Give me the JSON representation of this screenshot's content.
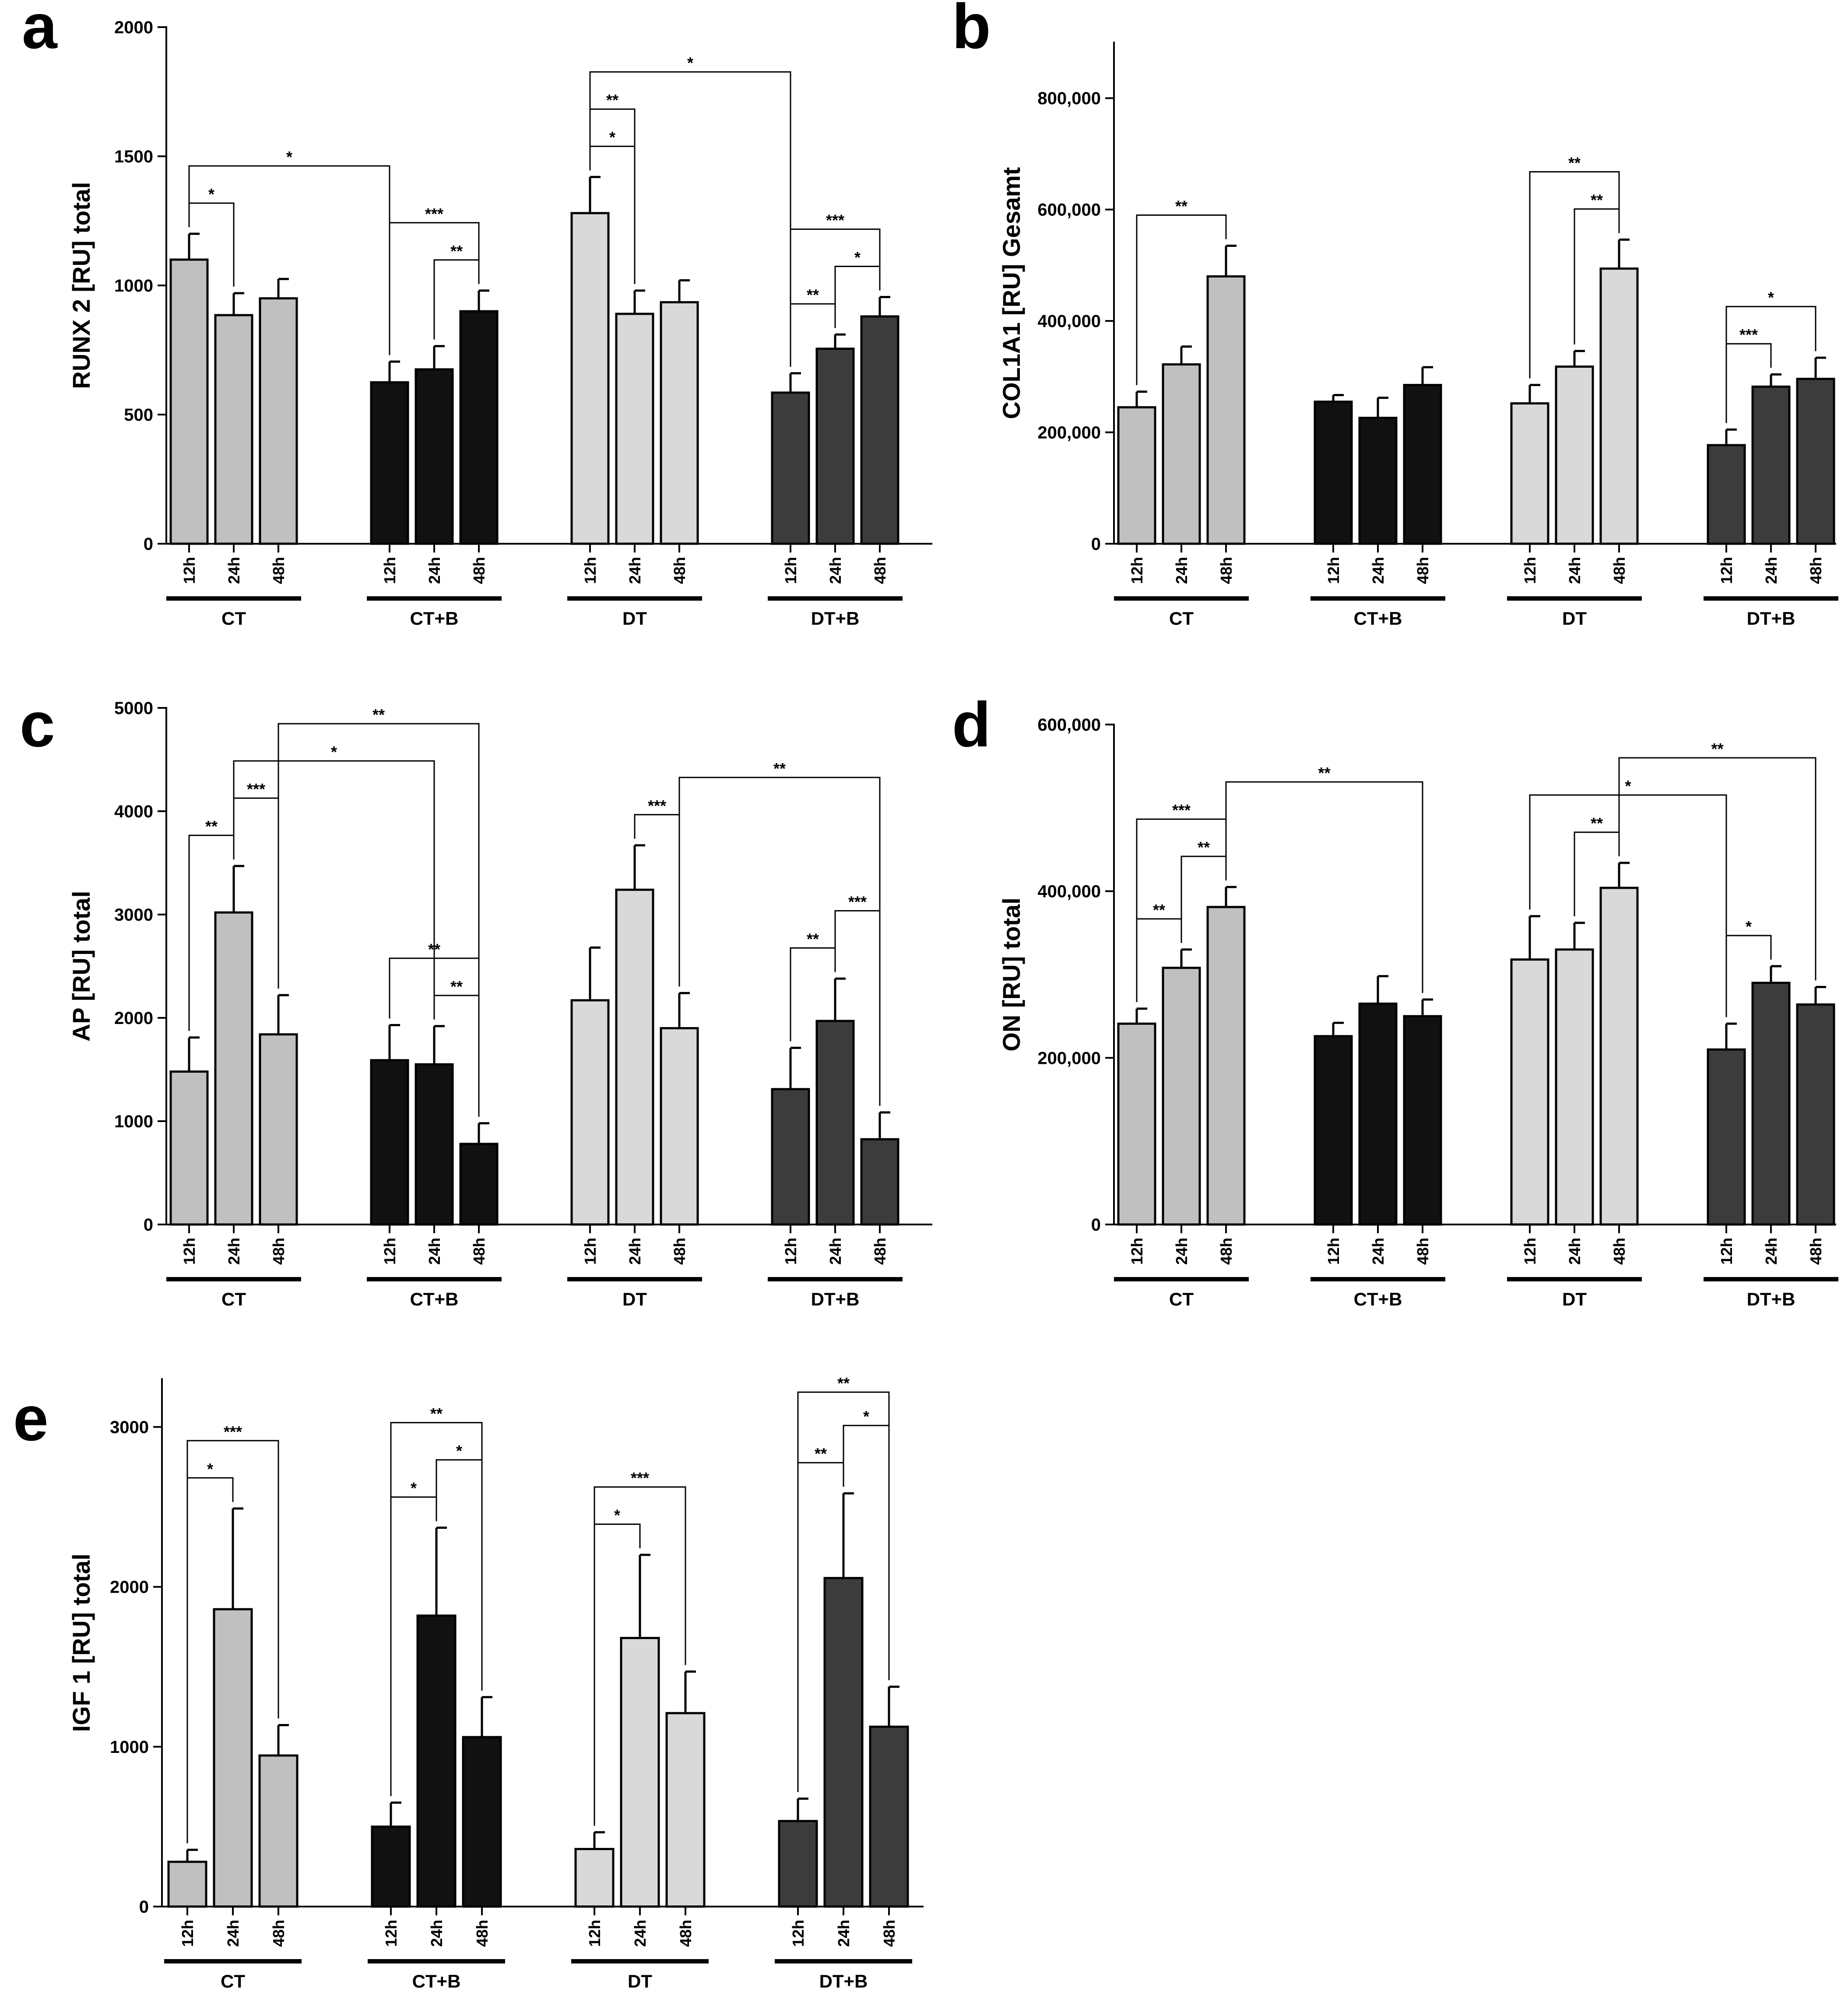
{
  "colors": {
    "CT": "#c0c0c0",
    "CT+B": "#111111",
    "DT": "#d9d9d9",
    "DT+B": "#3c3c3c"
  },
  "chart_data": [
    {
      "panel": "a",
      "type": "bar",
      "ylabel": "RUNX 2 [RU] total",
      "ylim": [
        0,
        2000
      ],
      "yticks": [
        0,
        500,
        1000,
        1500,
        2000
      ],
      "ytick_labels": [
        "0",
        "500",
        "1000",
        "1500",
        "2000"
      ],
      "groups": [
        "CT",
        "CT+B",
        "DT",
        "DT+B"
      ],
      "timepoints": [
        "12h",
        "24h",
        "48h"
      ],
      "values": [
        [
          1100,
          885,
          950
        ],
        [
          625,
          675,
          900
        ],
        [
          1280,
          890,
          935
        ],
        [
          585,
          755,
          880
        ]
      ],
      "errors": [
        [
          100,
          85,
          75
        ],
        [
          80,
          90,
          80
        ],
        [
          140,
          90,
          85
        ],
        [
          75,
          55,
          75
        ]
      ],
      "significance": [
        {
          "from": [
            0,
            0
          ],
          "to": [
            1,
            0
          ],
          "label": "*"
        },
        {
          "from": [
            0,
            0
          ],
          "to": [
            0,
            1
          ],
          "label": "*"
        },
        {
          "from": [
            1,
            0
          ],
          "to": [
            1,
            2
          ],
          "label": "***"
        },
        {
          "from": [
            1,
            1
          ],
          "to": [
            1,
            2
          ],
          "label": "**"
        },
        {
          "from": [
            2,
            0
          ],
          "to": [
            3,
            0
          ],
          "label": "*"
        },
        {
          "from": [
            2,
            0
          ],
          "to": [
            2,
            1
          ],
          "label": "*"
        },
        {
          "from": [
            2,
            0
          ],
          "to": [
            2,
            1
          ],
          "label": "**"
        },
        {
          "from": [
            3,
            0
          ],
          "to": [
            3,
            2
          ],
          "label": "***"
        },
        {
          "from": [
            3,
            0
          ],
          "to": [
            3,
            1
          ],
          "label": "**"
        },
        {
          "from": [
            3,
            1
          ],
          "to": [
            3,
            2
          ],
          "label": "*"
        }
      ]
    },
    {
      "panel": "b",
      "type": "bar",
      "ylabel": "COL1A1 [RU] Gesamt",
      "ylim": [
        0,
        900000
      ],
      "yticks": [
        0,
        200000,
        400000,
        600000,
        800000
      ],
      "ytick_labels": [
        "0",
        "200,000",
        "400,000",
        "600,000",
        "800,000"
      ],
      "groups": [
        "CT",
        "CT+B",
        "DT",
        "DT+B"
      ],
      "timepoints": [
        "12h",
        "24h",
        "48h"
      ],
      "values": [
        [
          245000,
          322000,
          480000
        ],
        [
          255000,
          226000,
          285000
        ],
        [
          252000,
          318000,
          494000
        ],
        [
          177000,
          282000,
          296000
        ]
      ],
      "errors": [
        [
          28000,
          32000,
          55000
        ],
        [
          12000,
          36000,
          32000
        ],
        [
          33000,
          28000,
          52000
        ],
        [
          28000,
          22000,
          38000
        ]
      ],
      "significance": [
        {
          "from": [
            0,
            0
          ],
          "to": [
            0,
            2
          ],
          "label": "**"
        },
        {
          "from": [
            2,
            0
          ],
          "to": [
            2,
            2
          ],
          "label": "**"
        },
        {
          "from": [
            2,
            1
          ],
          "to": [
            2,
            2
          ],
          "label": "**"
        },
        {
          "from": [
            3,
            0
          ],
          "to": [
            3,
            2
          ],
          "label": "*"
        },
        {
          "from": [
            3,
            0
          ],
          "to": [
            3,
            1
          ],
          "label": "***"
        }
      ]
    },
    {
      "panel": "c",
      "type": "bar",
      "ylabel": "AP [RU] total",
      "ylim": [
        0,
        5000
      ],
      "yticks": [
        0,
        1000,
        2000,
        3000,
        4000,
        5000
      ],
      "ytick_labels": [
        "0",
        "1000",
        "2000",
        "3000",
        "4000",
        "5000"
      ],
      "groups": [
        "CT",
        "CT+B",
        "DT",
        "DT+B"
      ],
      "timepoints": [
        "12h",
        "24h",
        "48h"
      ],
      "values": [
        [
          1480,
          3020,
          1840
        ],
        [
          1590,
          1550,
          780
        ],
        [
          2170,
          3240,
          1900
        ],
        [
          1310,
          1970,
          825
        ]
      ],
      "errors": [
        [
          330,
          450,
          380
        ],
        [
          340,
          370,
          200
        ],
        [
          510,
          430,
          340
        ],
        [
          400,
          410,
          260
        ]
      ],
      "significance": [
        {
          "from": [
            0,
            1
          ],
          "to": [
            1,
            1
          ],
          "label": "*"
        },
        {
          "from": [
            0,
            2
          ],
          "to": [
            1,
            2
          ],
          "label": "**"
        },
        {
          "from": [
            1,
            0
          ],
          "to": [
            1,
            2
          ],
          "label": "**"
        },
        {
          "from": [
            1,
            1
          ],
          "to": [
            1,
            2
          ],
          "label": "**"
        },
        {
          "from": [
            0,
            0
          ],
          "to": [
            0,
            1
          ],
          "label": "**"
        },
        {
          "from": [
            0,
            1
          ],
          "to": [
            0,
            2
          ],
          "label": "***"
        },
        {
          "from": [
            2,
            2
          ],
          "to": [
            3,
            2
          ],
          "label": "**"
        },
        {
          "from": [
            2,
            1
          ],
          "to": [
            2,
            2
          ],
          "label": "***"
        },
        {
          "from": [
            3,
            0
          ],
          "to": [
            3,
            1
          ],
          "label": "**"
        },
        {
          "from": [
            3,
            1
          ],
          "to": [
            3,
            2
          ],
          "label": "***"
        }
      ]
    },
    {
      "panel": "d",
      "type": "bar",
      "ylabel": "ON [RU] total",
      "ylim": [
        0,
        600000
      ],
      "yticks": [
        0,
        200000,
        400000,
        600000
      ],
      "ytick_labels": [
        "0",
        "200,000",
        "400,000",
        "600,000"
      ],
      "groups": [
        "CT",
        "CT+B",
        "DT",
        "DT+B"
      ],
      "timepoints": [
        "12h",
        "24h",
        "48h"
      ],
      "values": [
        [
          241000,
          308000,
          381000
        ],
        [
          226000,
          265000,
          250000
        ],
        [
          318000,
          330000,
          404000
        ],
        [
          210000,
          290000,
          264000
        ]
      ],
      "errors": [
        [
          18000,
          22000,
          24000
        ],
        [
          16000,
          33000,
          20000
        ],
        [
          52000,
          32000,
          30000
        ],
        [
          31000,
          20000,
          21000
        ]
      ],
      "significance": [
        {
          "from": [
            0,
            2
          ],
          "to": [
            1,
            2
          ],
          "label": "**"
        },
        {
          "from": [
            0,
            0
          ],
          "to": [
            0,
            2
          ],
          "label": "***"
        },
        {
          "from": [
            0,
            0
          ],
          "to": [
            0,
            1
          ],
          "label": "**"
        },
        {
          "from": [
            0,
            1
          ],
          "to": [
            0,
            2
          ],
          "label": "**"
        },
        {
          "from": [
            2,
            2
          ],
          "to": [
            3,
            2
          ],
          "label": "**"
        },
        {
          "from": [
            2,
            0
          ],
          "to": [
            3,
            0
          ],
          "label": "*"
        },
        {
          "from": [
            2,
            1
          ],
          "to": [
            2,
            2
          ],
          "label": "**"
        },
        {
          "from": [
            3,
            0
          ],
          "to": [
            3,
            1
          ],
          "label": "*"
        }
      ]
    },
    {
      "panel": "e",
      "type": "bar",
      "ylabel": "IGF 1 [RU] total",
      "ylim": [
        0,
        3300
      ],
      "yticks": [
        0,
        1000,
        2000,
        3000
      ],
      "ytick_labels": [
        "0",
        "1000",
        "2000",
        "3000"
      ],
      "groups": [
        "CT",
        "CT+B",
        "DT",
        "DT+B"
      ],
      "timepoints": [
        "12h",
        "24h",
        "48h"
      ],
      "values": [
        [
          280,
          1860,
          945
        ],
        [
          500,
          1820,
          1060
        ],
        [
          360,
          1680,
          1210
        ],
        [
          535,
          2055,
          1125
        ]
      ],
      "errors": [
        [
          75,
          630,
          190
        ],
        [
          150,
          550,
          250
        ],
        [
          105,
          520,
          260
        ],
        [
          140,
          530,
          250
        ]
      ],
      "significance": [
        {
          "from": [
            0,
            0
          ],
          "to": [
            0,
            2
          ],
          "label": "***"
        },
        {
          "from": [
            0,
            0
          ],
          "to": [
            0,
            1
          ],
          "label": "*"
        },
        {
          "from": [
            1,
            0
          ],
          "to": [
            1,
            2
          ],
          "label": "**"
        },
        {
          "from": [
            1,
            0
          ],
          "to": [
            1,
            1
          ],
          "label": "*"
        },
        {
          "from": [
            1,
            1
          ],
          "to": [
            1,
            2
          ],
          "label": "*"
        },
        {
          "from": [
            2,
            0
          ],
          "to": [
            2,
            2
          ],
          "label": "***"
        },
        {
          "from": [
            2,
            0
          ],
          "to": [
            2,
            1
          ],
          "label": "*"
        },
        {
          "from": [
            3,
            0
          ],
          "to": [
            3,
            2
          ],
          "label": "**"
        },
        {
          "from": [
            3,
            0
          ],
          "to": [
            3,
            1
          ],
          "label": "**"
        },
        {
          "from": [
            3,
            1
          ],
          "to": [
            3,
            2
          ],
          "label": "*"
        }
      ]
    }
  ]
}
